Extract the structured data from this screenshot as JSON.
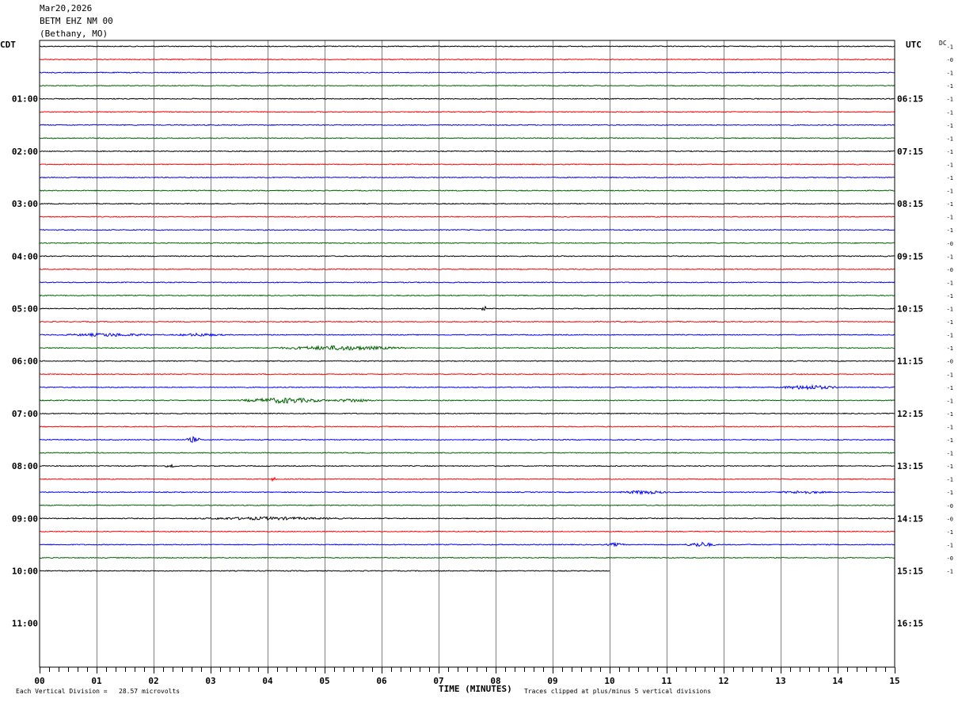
{
  "header": {
    "date": "Mar20,2026",
    "station": "BETM EHZ NM 00",
    "location": "(Bethany, MO)"
  },
  "left_tz": "CDT",
  "right_tz": "UTC",
  "dc_label": "DC",
  "footer": {
    "vertical_division": "Each Vertical Division =   28.57 microvolts",
    "xlabel": "TIME (MINUTES)",
    "clip_note": "Traces clipped at plus/minus 5 vertical divisions"
  },
  "colors": {
    "trace_cycle": [
      "#000000",
      "#ff0000",
      "#0000ff",
      "#006400"
    ],
    "grid": "#808080",
    "frame": "#000000"
  },
  "chart_data": {
    "type": "line",
    "subtype": "helicorder",
    "xlabel": "TIME (MINUTES)",
    "xlim": [
      0,
      15
    ],
    "x_ticks": [
      "00",
      "01",
      "02",
      "03",
      "04",
      "05",
      "06",
      "07",
      "08",
      "09",
      "10",
      "11",
      "12",
      "13",
      "14",
      "15"
    ],
    "minor_tick_step_seconds": 10,
    "minutes_per_line": 15,
    "lines_total": 48,
    "lines_drawn": 41,
    "last_line_minutes": 10,
    "left_hour_labels": [
      {
        "line": 4,
        "text": "01:00"
      },
      {
        "line": 8,
        "text": "02:00"
      },
      {
        "line": 12,
        "text": "03:00"
      },
      {
        "line": 16,
        "text": "04:00"
      },
      {
        "line": 20,
        "text": "05:00"
      },
      {
        "line": 24,
        "text": "06:00"
      },
      {
        "line": 28,
        "text": "07:00"
      },
      {
        "line": 32,
        "text": "08:00"
      },
      {
        "line": 36,
        "text": "09:00"
      },
      {
        "line": 40,
        "text": "10:00"
      },
      {
        "line": 44,
        "text": "11:00"
      }
    ],
    "right_hour_labels": [
      {
        "line": 4,
        "text": "06:15"
      },
      {
        "line": 8,
        "text": "07:15"
      },
      {
        "line": 12,
        "text": "08:15"
      },
      {
        "line": 16,
        "text": "09:15"
      },
      {
        "line": 20,
        "text": "10:15"
      },
      {
        "line": 24,
        "text": "11:15"
      },
      {
        "line": 28,
        "text": "12:15"
      },
      {
        "line": 32,
        "text": "13:15"
      },
      {
        "line": 36,
        "text": "14:15"
      },
      {
        "line": 40,
        "text": "15:15"
      },
      {
        "line": 44,
        "text": "16:15"
      }
    ],
    "dc_offsets": [
      "-1",
      "-0",
      "-1",
      "-1",
      "-1",
      "-1",
      "-1",
      "-1",
      "-1",
      "-1",
      "-1",
      "-1",
      "-1",
      "-1",
      "-1",
      "-0",
      "-1",
      "-0",
      "-1",
      "-1",
      "-1",
      "-1",
      "-1",
      "-1",
      "-0",
      "-1",
      "-1",
      "-1",
      "-1",
      "-1",
      "-1",
      "-1",
      "-1",
      "-1",
      "-1",
      "-0",
      "-0",
      "-1",
      "-1",
      "-0",
      "-1"
    ],
    "events": [
      {
        "line": 20,
        "minute": 7.8,
        "amp": 3.5,
        "width": 0.06
      },
      {
        "line": 22,
        "minute": 1.2,
        "amp": 1.8,
        "width": 0.9
      },
      {
        "line": 22,
        "minute": 2.8,
        "amp": 1.6,
        "width": 0.5
      },
      {
        "line": 23,
        "minute": 5.3,
        "amp": 2.6,
        "width": 1.3
      },
      {
        "line": 26,
        "minute": 13.5,
        "amp": 2.6,
        "width": 0.6
      },
      {
        "line": 27,
        "minute": 4.3,
        "amp": 3.2,
        "width": 0.9
      },
      {
        "line": 27,
        "minute": 5.5,
        "amp": 2.0,
        "width": 0.4
      },
      {
        "line": 30,
        "minute": 2.7,
        "amp": 3.5,
        "width": 0.15
      },
      {
        "line": 32,
        "minute": 2.3,
        "amp": 2.5,
        "width": 0.12
      },
      {
        "line": 33,
        "minute": 4.1,
        "amp": 2.0,
        "width": 0.08
      },
      {
        "line": 34,
        "minute": 10.6,
        "amp": 2.0,
        "width": 0.5
      },
      {
        "line": 34,
        "minute": 13.4,
        "amp": 1.6,
        "width": 0.5
      },
      {
        "line": 36,
        "minute": 4.0,
        "amp": 1.5,
        "width": 1.5
      },
      {
        "line": 38,
        "minute": 11.6,
        "amp": 3.0,
        "width": 0.3
      },
      {
        "line": 38,
        "minute": 10.1,
        "amp": 1.8,
        "width": 0.2
      }
    ]
  }
}
